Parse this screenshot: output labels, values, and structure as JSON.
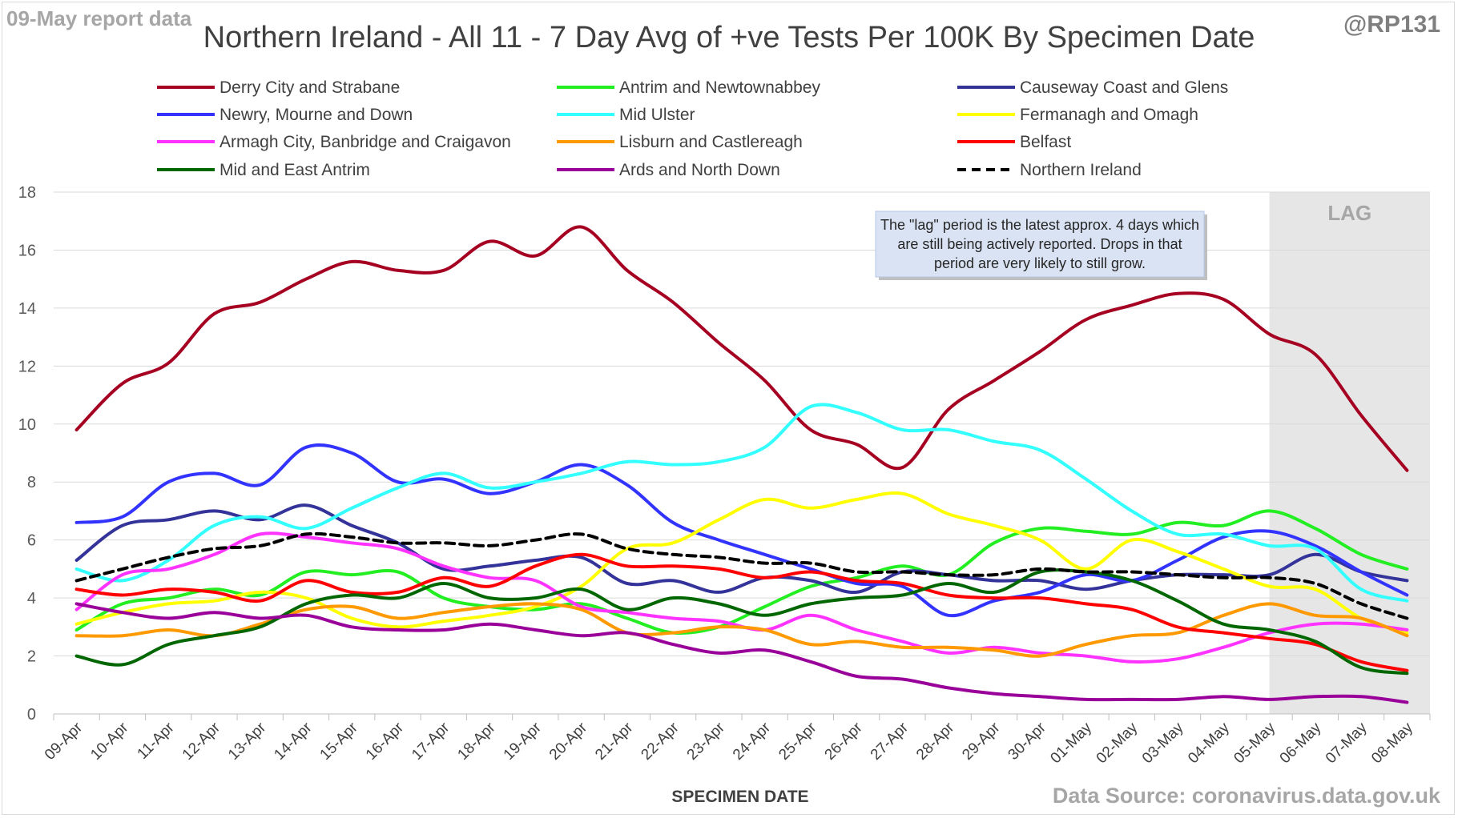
{
  "header": {
    "report_date": "09-May report data",
    "handle": "@RP131",
    "title": "Northern Ireland - All 11 - 7 Day Avg of +ve Tests Per 100K By Specimen Date",
    "source": "Data Source: coronavirus.data.gov.uk"
  },
  "chart_data": {
    "type": "line",
    "title": "Northern Ireland - All 11 - 7 Day Avg of +ve Tests Per 100K By Specimen Date",
    "xlabel": "SPECIMEN DATE",
    "ylabel": "",
    "ylim": [
      0,
      18
    ],
    "yticks": [
      0,
      2,
      4,
      6,
      8,
      10,
      12,
      14,
      16,
      18
    ],
    "grid": true,
    "legend_position": "top",
    "categories": [
      "09-Apr",
      "10-Apr",
      "11-Apr",
      "12-Apr",
      "13-Apr",
      "14-Apr",
      "15-Apr",
      "16-Apr",
      "17-Apr",
      "18-Apr",
      "19-Apr",
      "20-Apr",
      "21-Apr",
      "22-Apr",
      "23-Apr",
      "24-Apr",
      "25-Apr",
      "26-Apr",
      "27-Apr",
      "28-Apr",
      "29-Apr",
      "30-Apr",
      "01-May",
      "02-May",
      "03-May",
      "04-May",
      "05-May",
      "06-May",
      "07-May",
      "08-May"
    ],
    "lag": {
      "label": "LAG",
      "from": "05-May",
      "to": "08-May"
    },
    "annotation": "The \"lag\" period is the latest approx. 4 days which are still being actively reported. Drops in that period are very likely to still grow.",
    "series": [
      {
        "name": "Derry City and Strabane",
        "color": "#a50021",
        "dashed": false,
        "values": [
          9.8,
          11.4,
          12.1,
          13.8,
          14.2,
          15.0,
          15.6,
          15.3,
          15.3,
          16.3,
          15.8,
          16.8,
          15.3,
          14.2,
          12.8,
          11.5,
          9.8,
          9.3,
          8.5,
          10.5,
          11.5,
          12.5,
          13.6,
          14.1,
          14.5,
          14.3,
          13.1,
          12.4,
          10.3,
          8.4
        ]
      },
      {
        "name": "Antrim and Newtownabbey",
        "color": "#22ee22",
        "dashed": false,
        "values": [
          2.9,
          3.8,
          4.0,
          4.3,
          4.1,
          4.9,
          4.8,
          4.9,
          4.0,
          3.7,
          3.6,
          3.8,
          3.3,
          2.8,
          3.0,
          3.7,
          4.4,
          4.7,
          5.1,
          4.8,
          5.9,
          6.4,
          6.3,
          6.2,
          6.6,
          6.5,
          7.0,
          6.4,
          5.5,
          5.0
        ]
      },
      {
        "name": "Causeway Coast and Glens",
        "color": "#333399",
        "dashed": false,
        "values": [
          5.3,
          6.5,
          6.7,
          7.0,
          6.7,
          7.2,
          6.5,
          5.9,
          5.0,
          5.1,
          5.3,
          5.4,
          4.5,
          4.6,
          4.2,
          4.7,
          4.6,
          4.2,
          4.9,
          4.8,
          4.6,
          4.6,
          4.3,
          4.6,
          4.8,
          4.8,
          4.8,
          5.5,
          4.9,
          4.6
        ]
      },
      {
        "name": "Newry, Mourne and Down",
        "color": "#3333ff",
        "dashed": false,
        "values": [
          6.6,
          6.8,
          8.0,
          8.3,
          7.9,
          9.2,
          9.0,
          8.0,
          8.1,
          7.6,
          8.0,
          8.6,
          7.9,
          6.6,
          6.0,
          5.5,
          5.0,
          4.5,
          4.4,
          3.4,
          3.9,
          4.2,
          4.8,
          4.6,
          5.3,
          6.1,
          6.3,
          5.8,
          4.9,
          4.1
        ]
      },
      {
        "name": "Mid Ulster",
        "color": "#33ffff",
        "dashed": false,
        "values": [
          5.0,
          4.6,
          5.3,
          6.5,
          6.8,
          6.4,
          7.1,
          7.8,
          8.3,
          7.8,
          8.0,
          8.3,
          8.7,
          8.6,
          8.7,
          9.2,
          10.6,
          10.4,
          9.8,
          9.8,
          9.4,
          9.1,
          8.1,
          7.0,
          6.2,
          6.2,
          5.8,
          5.7,
          4.3,
          3.9
        ]
      },
      {
        "name": "Fermanagh and Omagh",
        "color": "#ffff00",
        "dashed": false,
        "values": [
          3.1,
          3.5,
          3.8,
          3.9,
          4.2,
          4.0,
          3.3,
          3.0,
          3.2,
          3.4,
          3.7,
          4.4,
          5.7,
          5.9,
          6.7,
          7.4,
          7.1,
          7.4,
          7.6,
          6.9,
          6.5,
          6.0,
          5.0,
          6.0,
          5.6,
          5.0,
          4.4,
          4.3,
          3.3,
          2.8
        ]
      },
      {
        "name": "Armagh City, Banbridge and Craigavon",
        "color": "#ff33ff",
        "dashed": false,
        "values": [
          3.6,
          4.8,
          5.0,
          5.5,
          6.2,
          6.1,
          5.9,
          5.7,
          5.1,
          4.7,
          4.6,
          3.7,
          3.5,
          3.3,
          3.2,
          2.9,
          3.4,
          2.9,
          2.5,
          2.1,
          2.3,
          2.1,
          2.0,
          1.8,
          1.9,
          2.3,
          2.8,
          3.1,
          3.1,
          2.9
        ]
      },
      {
        "name": "Lisburn and Castlereagh",
        "color": "#ff9900",
        "dashed": false,
        "values": [
          2.7,
          2.7,
          2.9,
          2.7,
          3.1,
          3.6,
          3.7,
          3.3,
          3.5,
          3.7,
          3.8,
          3.6,
          2.8,
          2.8,
          3.0,
          2.9,
          2.4,
          2.5,
          2.3,
          2.3,
          2.2,
          2.0,
          2.4,
          2.7,
          2.8,
          3.4,
          3.8,
          3.4,
          3.3,
          2.7
        ]
      },
      {
        "name": "Belfast",
        "color": "#ff0000",
        "dashed": false,
        "values": [
          4.3,
          4.1,
          4.3,
          4.2,
          3.9,
          4.6,
          4.2,
          4.2,
          4.7,
          4.4,
          5.1,
          5.5,
          5.1,
          5.1,
          5.0,
          4.7,
          4.9,
          4.6,
          4.5,
          4.1,
          4.0,
          4.0,
          3.8,
          3.6,
          3.0,
          2.8,
          2.6,
          2.4,
          1.8,
          1.5
        ]
      },
      {
        "name": "Mid and East Antrim",
        "color": "#006600",
        "dashed": false,
        "values": [
          2.0,
          1.7,
          2.4,
          2.7,
          3.0,
          3.8,
          4.1,
          4.0,
          4.5,
          4.0,
          4.0,
          4.3,
          3.6,
          4.0,
          3.8,
          3.4,
          3.8,
          4.0,
          4.1,
          4.5,
          4.2,
          4.9,
          4.9,
          4.6,
          3.9,
          3.1,
          2.9,
          2.5,
          1.6,
          1.4
        ]
      },
      {
        "name": "Ards and North Down",
        "color": "#990099",
        "dashed": false,
        "values": [
          3.8,
          3.5,
          3.3,
          3.5,
          3.3,
          3.4,
          3.0,
          2.9,
          2.9,
          3.1,
          2.9,
          2.7,
          2.8,
          2.4,
          2.1,
          2.2,
          1.8,
          1.3,
          1.2,
          0.9,
          0.7,
          0.6,
          0.5,
          0.5,
          0.5,
          0.6,
          0.5,
          0.6,
          0.6,
          0.4
        ]
      },
      {
        "name": "Northern Ireland",
        "color": "#000000",
        "dashed": true,
        "values": [
          4.6,
          5.0,
          5.4,
          5.7,
          5.8,
          6.2,
          6.1,
          5.9,
          5.9,
          5.8,
          6.0,
          6.2,
          5.7,
          5.5,
          5.4,
          5.2,
          5.2,
          4.9,
          4.9,
          4.8,
          4.8,
          5.0,
          4.9,
          4.9,
          4.8,
          4.7,
          4.7,
          4.5,
          3.8,
          3.3
        ]
      }
    ]
  }
}
